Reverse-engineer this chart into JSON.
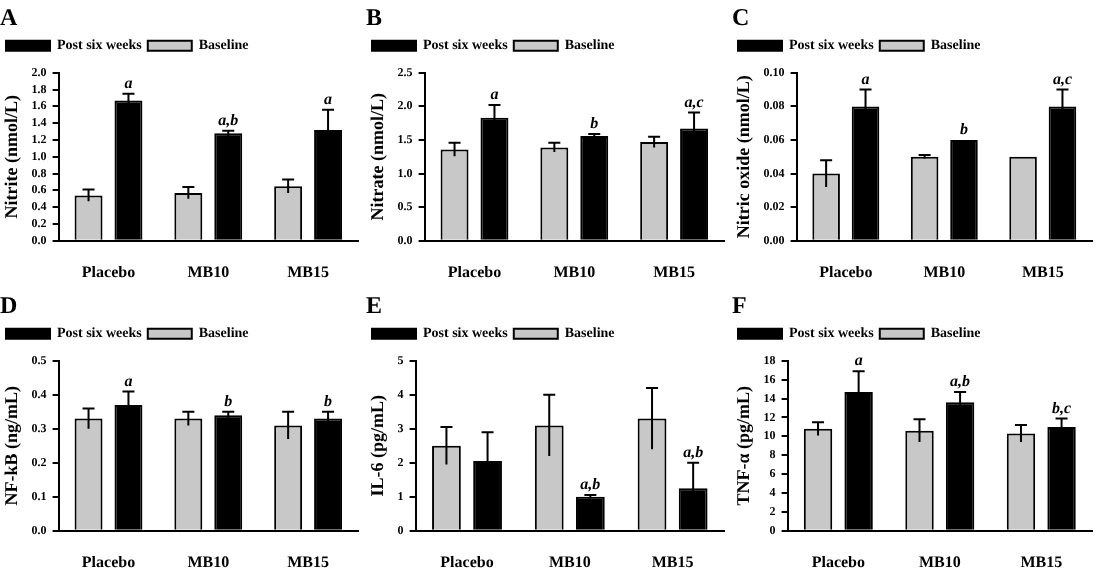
{
  "chart_data": [
    {
      "type": "bar",
      "title": "A",
      "ylabel": "Nitrite (nmol/L)",
      "categories": [
        "Placebo",
        "MB10",
        "MB15"
      ],
      "legend": "top left",
      "series": [
        {
          "name": "Baseline",
          "color": "#c8c8c8",
          "values": [
            0.54,
            0.57,
            0.65
          ],
          "errors": [
            0.07,
            0.07,
            0.08
          ]
        },
        {
          "name": "Post six weeks",
          "color": "#000000",
          "values": [
            1.67,
            1.28,
            1.32
          ],
          "errors": [
            0.08,
            0.03,
            0.24
          ]
        }
      ],
      "ylim": [
        0,
        2
      ],
      "yticks": [
        {
          "value": 0,
          "label": "0.0"
        },
        0.2,
        0.4,
        0.6,
        0.8,
        {
          "value": 1,
          "label": "1.0"
        },
        1.2,
        1.4,
        1.6,
        1.8,
        {
          "value": 2,
          "label": "2.0"
        }
      ],
      "annotations": [
        {
          "text": "a",
          "x": "Placebo",
          "y": 1.67
        },
        {
          "text": "a,b",
          "x": "MB10",
          "y": 1.28
        },
        {
          "text": "a",
          "x": "MB15",
          "y": 1.32
        }
      ]
    },
    {
      "type": "bar",
      "title": "B",
      "ylabel": "Nitrate (nmol/L)",
      "categories": [
        "Placebo",
        "MB10",
        "MB15"
      ],
      "legend": "top left",
      "series": [
        {
          "name": "Baseline",
          "color": "#c8c8c8",
          "values": [
            1.36,
            1.39,
            1.47
          ],
          "errors": [
            0.1,
            0.07,
            0.08
          ]
        },
        {
          "name": "Post six weeks",
          "color": "#000000",
          "values": [
            1.83,
            1.56,
            1.67
          ],
          "errors": [
            0.19,
            0.03,
            0.24
          ]
        }
      ],
      "ylim": [
        0,
        2.5
      ],
      "yticks": [
        {
          "value": 0,
          "label": "0.0"
        },
        0.5,
        {
          "value": 1,
          "label": "1.0"
        },
        1.5,
        {
          "value": 2,
          "label": "2.0"
        },
        2.5
      ],
      "annotations": [
        {
          "text": "a",
          "x": "Placebo",
          "y": 1.83
        },
        {
          "text": "b",
          "x": "MB10",
          "y": 1.56
        },
        {
          "text": "a,c",
          "x": "MB15",
          "y": 1.67
        }
      ]
    },
    {
      "type": "bar",
      "title": "C",
      "ylabel": "Nitric oxide (nmol/L)",
      "categories": [
        "Placebo",
        "MB10",
        "MB15"
      ],
      "legend": "top left",
      "series": [
        {
          "name": "Baseline",
          "color": "#c8c8c8",
          "values": [
            0.04,
            0.05,
            0.05
          ],
          "errors": [
            0.008,
            0.001,
            null
          ]
        },
        {
          "name": "Post six weeks",
          "color": "#000000",
          "values": [
            0.08,
            0.06,
            0.08
          ],
          "errors": [
            0.01,
            null,
            0.01
          ]
        }
      ],
      "ylim": [
        0,
        0.1
      ],
      "yticks": [
        {
          "value": 0,
          "label": "0.00"
        },
        0.02,
        0.04,
        0.06,
        0.08,
        {
          "value": 0.1,
          "label": "0.10"
        }
      ],
      "annotations": [
        {
          "text": "a",
          "x": "Placebo",
          "y": 0.08
        },
        {
          "text": "b",
          "x": "MB10",
          "y": 0.06
        },
        {
          "text": "a,c",
          "x": "MB15",
          "y": 0.08
        }
      ]
    },
    {
      "type": "bar",
      "title": "D",
      "ylabel": "NF-kB (ng/mL)",
      "categories": [
        "Placebo",
        "MB10",
        "MB15"
      ],
      "legend": "top left",
      "series": [
        {
          "name": "Baseline",
          "color": "#c8c8c8",
          "values": [
            0.33,
            0.33,
            0.31
          ],
          "errors": [
            0.03,
            0.02,
            0.04
          ]
        },
        {
          "name": "Post six weeks",
          "color": "#000000",
          "values": [
            0.37,
            0.34,
            0.33
          ],
          "errors": [
            0.04,
            0.01,
            0.02
          ]
        }
      ],
      "ylim": [
        0,
        0.5
      ],
      "yticks": [
        {
          "value": 0,
          "label": "0.0"
        },
        0.1,
        0.2,
        0.3,
        0.4,
        0.5
      ],
      "annotations": [
        {
          "text": "a",
          "x": "Placebo",
          "y": 0.37
        },
        {
          "text": "b",
          "x": "MB10",
          "y": 0.34
        },
        {
          "text": "b",
          "x": "MB15",
          "y": 0.33
        }
      ]
    },
    {
      "type": "bar",
      "title": "E",
      "ylabel": "IL-6 (pg/mL)",
      "categories": [
        "Placebo",
        "MB10",
        "MB15"
      ],
      "legend": "top left",
      "series": [
        {
          "name": "Baseline",
          "color": "#c8c8c8",
          "values": [
            2.5,
            3.1,
            3.3
          ],
          "errors": [
            0.55,
            0.9,
            0.9
          ]
        },
        {
          "name": "Post six weeks",
          "color": "#000000",
          "values": [
            2.05,
            1.0,
            1.25
          ],
          "errors": [
            0.85,
            0.05,
            0.75
          ]
        }
      ],
      "ylim": [
        0,
        5
      ],
      "yticks": [
        0,
        1,
        2,
        3,
        4,
        5
      ],
      "annotations": [
        {
          "text": "a,b",
          "x": "MB10",
          "y": 1.0
        },
        {
          "text": "a,b",
          "x": "MB15",
          "y": 1.25
        }
      ]
    },
    {
      "type": "bar",
      "title": "F",
      "ylabel": "TNF-α (pg/mL)",
      "categories": [
        "Placebo",
        "MB10",
        "MB15"
      ],
      "legend": "top left",
      "series": [
        {
          "name": "Baseline",
          "color": "#c8c8c8",
          "values": [
            10.8,
            10.6,
            10.3
          ],
          "errors": [
            0.7,
            1.2,
            0.9
          ]
        },
        {
          "name": "Post six weeks",
          "color": "#000000",
          "values": [
            14.7,
            13.6,
            11.0
          ],
          "errors": [
            2.2,
            1.1,
            0.9
          ]
        }
      ],
      "ylim": [
        0,
        18
      ],
      "yticks": [
        0,
        2,
        4,
        6,
        8,
        10,
        12,
        14,
        16,
        18
      ],
      "annotations": [
        {
          "text": "a",
          "x": "Placebo",
          "y": 14.7
        },
        {
          "text": "a,b",
          "x": "MB10",
          "y": 13.6
        },
        {
          "text": "b,c",
          "x": "MB15",
          "y": 11.0
        }
      ]
    }
  ]
}
